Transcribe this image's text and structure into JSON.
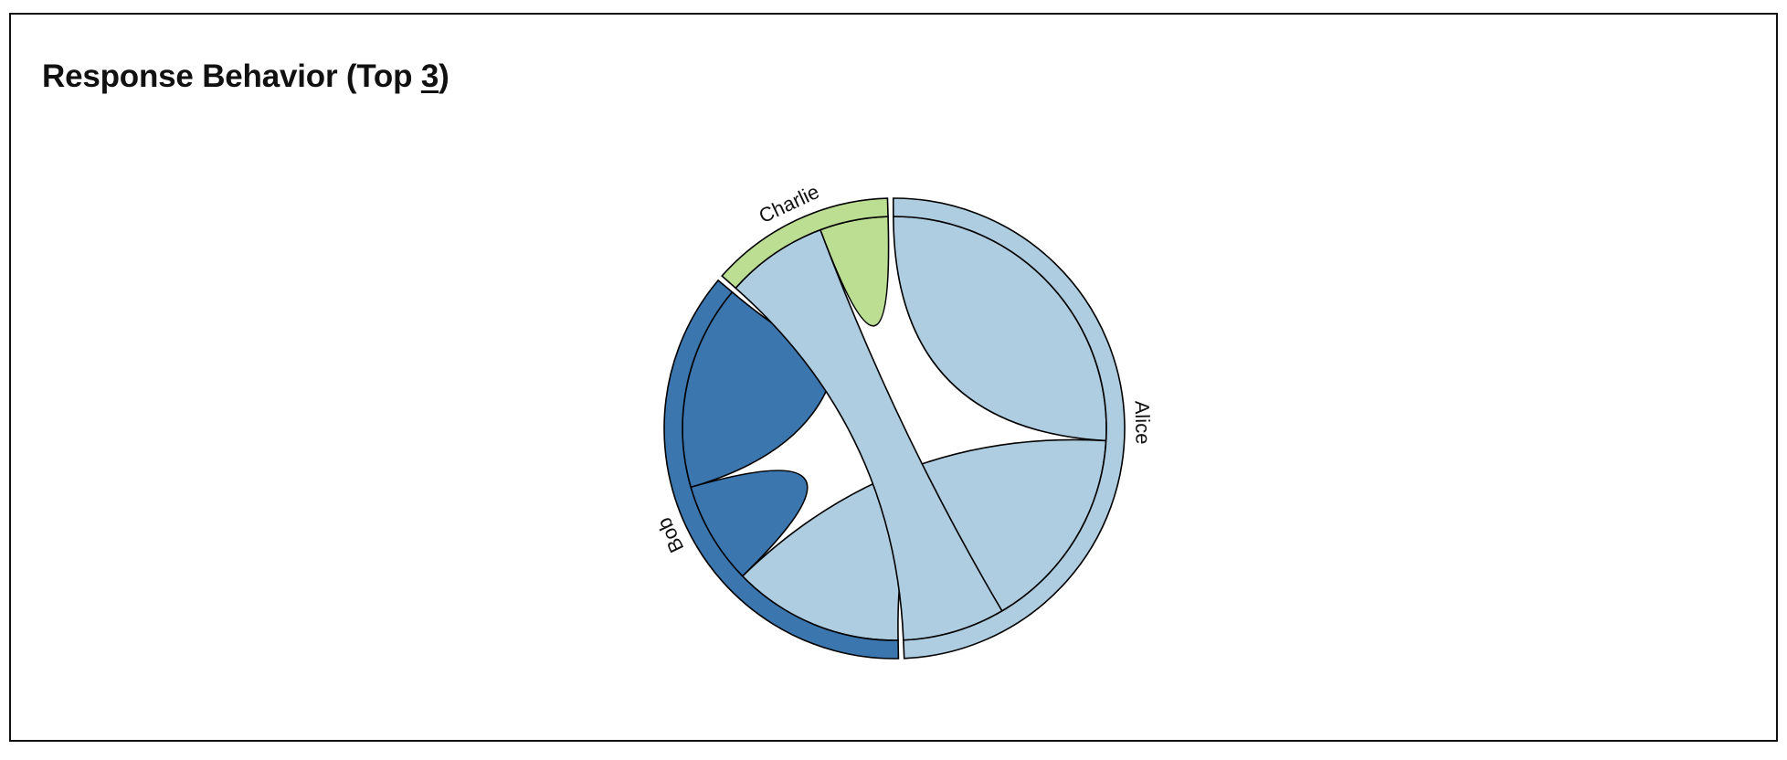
{
  "header": {
    "title_prefix": "Response Behavior (Top ",
    "top_n": "3",
    "title_suffix": ")"
  },
  "chart_data": {
    "type": "chord",
    "title": "Response Behavior (Top 3)",
    "groups": [
      {
        "name": "Alice",
        "color": "#aecde1"
      },
      {
        "name": "Bob",
        "color": "#3b76af"
      },
      {
        "name": "Charlie",
        "color": "#bbde93"
      }
    ],
    "matrix": [
      [
        10,
        6,
        3
      ],
      [
        5,
        3,
        6
      ],
      [
        3,
        0,
        2
      ]
    ]
  }
}
